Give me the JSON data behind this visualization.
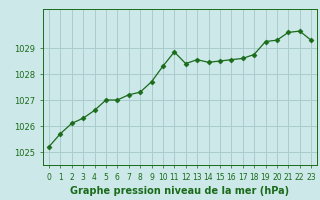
{
  "x": [
    0,
    1,
    2,
    3,
    4,
    5,
    6,
    7,
    8,
    9,
    10,
    11,
    12,
    13,
    14,
    15,
    16,
    17,
    18,
    19,
    20,
    21,
    22,
    23
  ],
  "y": [
    1025.2,
    1025.7,
    1026.1,
    1026.3,
    1026.6,
    1027.0,
    1027.0,
    1027.2,
    1027.3,
    1027.7,
    1028.3,
    1028.85,
    1028.4,
    1028.55,
    1028.45,
    1028.5,
    1028.55,
    1028.6,
    1028.75,
    1029.25,
    1029.3,
    1029.6,
    1029.65,
    1029.3
  ],
  "line_color": "#1a6b1a",
  "marker": "D",
  "marker_size": 2.5,
  "bg_color": "#cce8e8",
  "grid_color": "#aacccc",
  "xlabel": "Graphe pression niveau de la mer (hPa)",
  "xlabel_color": "#1a6b1a",
  "tick_color": "#1a6b1a",
  "ylim": [
    1024.5,
    1030.5
  ],
  "yticks": [
    1025,
    1026,
    1027,
    1028,
    1029
  ],
  "xlim": [
    -0.5,
    23.5
  ],
  "xtick_fontsize": 5.5,
  "ytick_fontsize": 6.0,
  "xlabel_fontsize": 7.0
}
